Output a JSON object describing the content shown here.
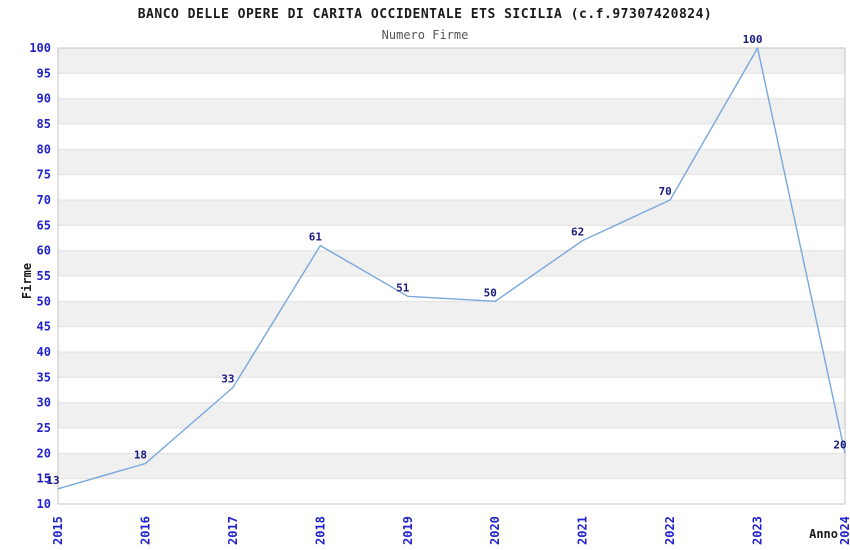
{
  "page": {
    "background": "#ffffff"
  },
  "chart_data": {
    "type": "line",
    "title": "BANCO DELLE OPERE DI CARITA OCCIDENTALE ETS SICILIA (c.f.97307420824)",
    "subtitle": "Numero Firme",
    "xlabel": "Anno",
    "ylabel": "Firme",
    "categories": [
      "2015",
      "2016",
      "2017",
      "2018",
      "2019",
      "2020",
      "2021",
      "2022",
      "2023",
      "2024"
    ],
    "values": [
      13,
      18,
      33,
      61,
      51,
      50,
      62,
      70,
      100,
      20
    ],
    "point_labels": [
      "13",
      "18",
      "33",
      "61",
      "51",
      "50",
      "62",
      "70",
      "100",
      "20"
    ],
    "ylim": [
      10,
      100
    ],
    "ytick_step": 5,
    "yticks": [
      10,
      15,
      20,
      25,
      30,
      35,
      40,
      45,
      50,
      55,
      60,
      65,
      70,
      75,
      80,
      85,
      90,
      95,
      100
    ],
    "grid": "horizontal-bands-alternating",
    "legend": "none",
    "colors": {
      "line": "#78a8dc",
      "tick_label": "#2222cc",
      "point_label": "#191980",
      "band": "#f0f0f0",
      "gridline": "#e2e2e2",
      "plot_border": "#c4c4c4",
      "title": "#1a1a1a",
      "subtitle": "#555555",
      "axis_title": "#1a1a1a"
    }
  }
}
